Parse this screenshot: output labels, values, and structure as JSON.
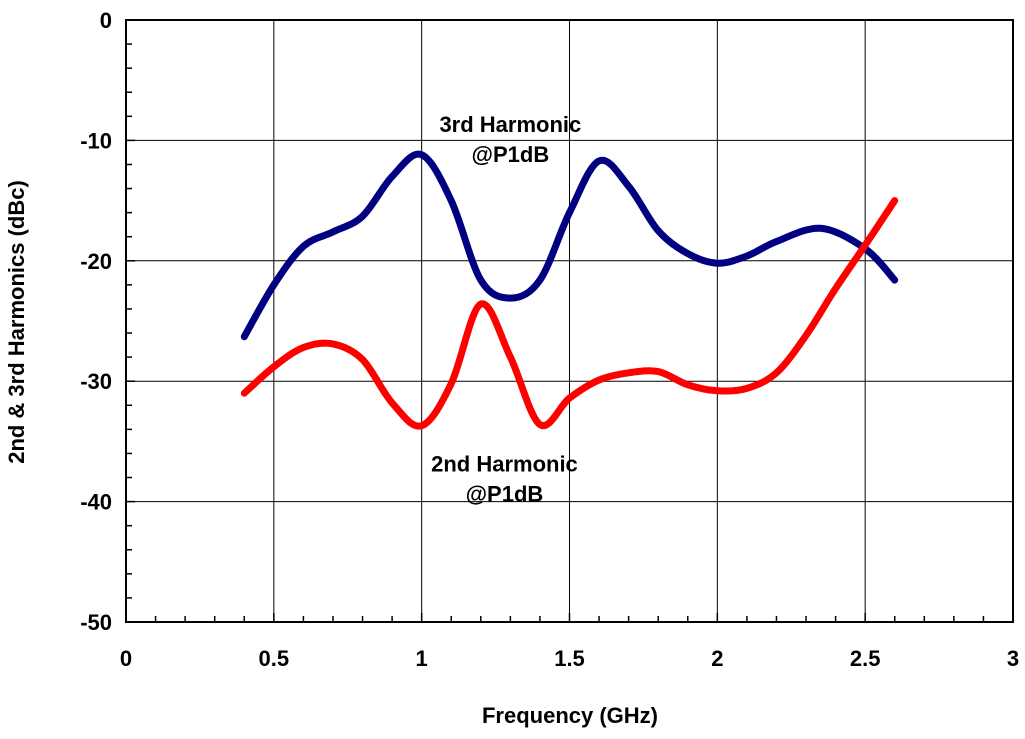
{
  "chart_data": {
    "type": "line",
    "title": "",
    "xlabel": "Frequency (GHz)",
    "ylabel": "2nd & 3rd Harmonics (dBc)",
    "xlim": [
      0,
      3
    ],
    "ylim": [
      -50,
      0
    ],
    "x_ticks": [
      "0",
      "0.5",
      "1",
      "1.5",
      "2",
      "2.5",
      "3"
    ],
    "y_ticks": [
      "0",
      "-10",
      "-20",
      "-30",
      "-40",
      "-50"
    ],
    "grid": true,
    "legend": "none",
    "series": [
      {
        "label": "3rd Harmonic @P1dB",
        "color": "#000080",
        "points": [
          [
            0.4,
            -26.3
          ],
          [
            0.5,
            -22.0
          ],
          [
            0.6,
            -18.8
          ],
          [
            0.7,
            -17.6
          ],
          [
            0.8,
            -16.3
          ],
          [
            0.9,
            -13.0
          ],
          [
            1.0,
            -11.2
          ],
          [
            1.1,
            -15.0
          ],
          [
            1.2,
            -21.6
          ],
          [
            1.3,
            -23.1
          ],
          [
            1.4,
            -21.6
          ],
          [
            1.5,
            -16.0
          ],
          [
            1.6,
            -11.7
          ],
          [
            1.7,
            -13.8
          ],
          [
            1.8,
            -17.5
          ],
          [
            1.9,
            -19.4
          ],
          [
            2.0,
            -20.2
          ],
          [
            2.1,
            -19.6
          ],
          [
            2.2,
            -18.4
          ],
          [
            2.35,
            -17.3
          ],
          [
            2.5,
            -19.0
          ],
          [
            2.6,
            -21.6
          ]
        ]
      },
      {
        "label": "2nd Harmonic @P1dB",
        "color": "#ff0000",
        "points": [
          [
            0.4,
            -31.0
          ],
          [
            0.5,
            -28.8
          ],
          [
            0.6,
            -27.2
          ],
          [
            0.7,
            -26.9
          ],
          [
            0.8,
            -28.2
          ],
          [
            0.9,
            -31.8
          ],
          [
            1.0,
            -33.7
          ],
          [
            1.1,
            -30.2
          ],
          [
            1.2,
            -23.6
          ],
          [
            1.3,
            -28.0
          ],
          [
            1.4,
            -33.6
          ],
          [
            1.5,
            -31.4
          ],
          [
            1.6,
            -29.9
          ],
          [
            1.7,
            -29.3
          ],
          [
            1.8,
            -29.2
          ],
          [
            1.9,
            -30.3
          ],
          [
            2.0,
            -30.8
          ],
          [
            2.1,
            -30.6
          ],
          [
            2.2,
            -29.3
          ],
          [
            2.3,
            -26.2
          ],
          [
            2.4,
            -22.3
          ],
          [
            2.5,
            -18.7
          ],
          [
            2.6,
            -15.0
          ]
        ]
      }
    ],
    "annotations": [
      {
        "lines": [
          "3rd Harmonic",
          "@P1dB"
        ],
        "x": 1.3,
        "y": -9.3
      },
      {
        "lines": [
          "2nd Harmonic",
          "@P1dB"
        ],
        "x": 1.28,
        "y": -37.5
      }
    ]
  }
}
